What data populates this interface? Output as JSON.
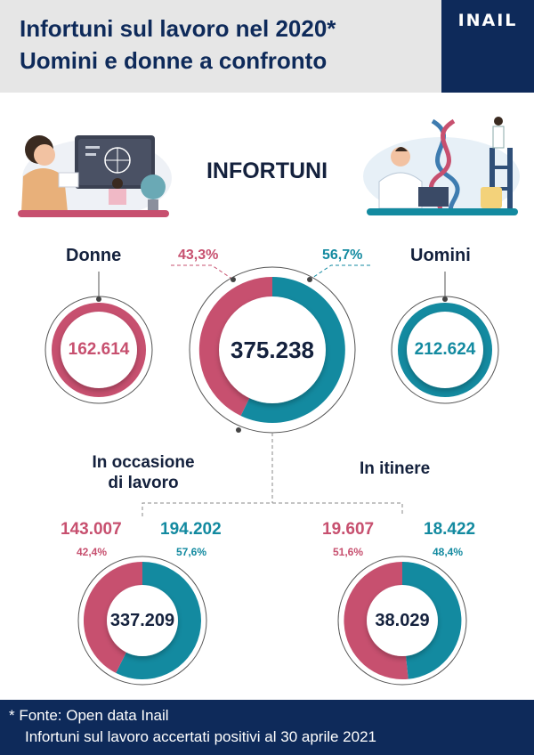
{
  "header": {
    "title_line1": "Infortuni sul lavoro nel 2020*",
    "title_line2": "Uomini e donne a confronto",
    "logo": "INAIL"
  },
  "section_title": "INFORTUNI",
  "totals": {
    "women_label": "Donne",
    "men_label": "Uomini",
    "women_pct": "43,3%",
    "men_pct": "56,7%",
    "women_value": "162.614",
    "men_value": "212.624",
    "total_value": "375.238"
  },
  "work": {
    "label_line1": "In occasione",
    "label_line2": "di lavoro",
    "women_value": "143.007",
    "women_pct": "42,4%",
    "men_value": "194.202",
    "men_pct": "57,6%",
    "total_value": "337.209"
  },
  "commute": {
    "label": "In itinere",
    "women_value": "19.607",
    "women_pct": "51,6%",
    "men_value": "18.422",
    "men_pct": "48,4%",
    "total_value": "38.029"
  },
  "footer": {
    "source": "* Fonte: Open data Inail",
    "note": "Infortuni sul lavoro accertati positivi al 30 aprile 2021"
  },
  "colors": {
    "pink": "#c7506f",
    "teal": "#138aa0",
    "navy": "#0e2a5a"
  }
}
